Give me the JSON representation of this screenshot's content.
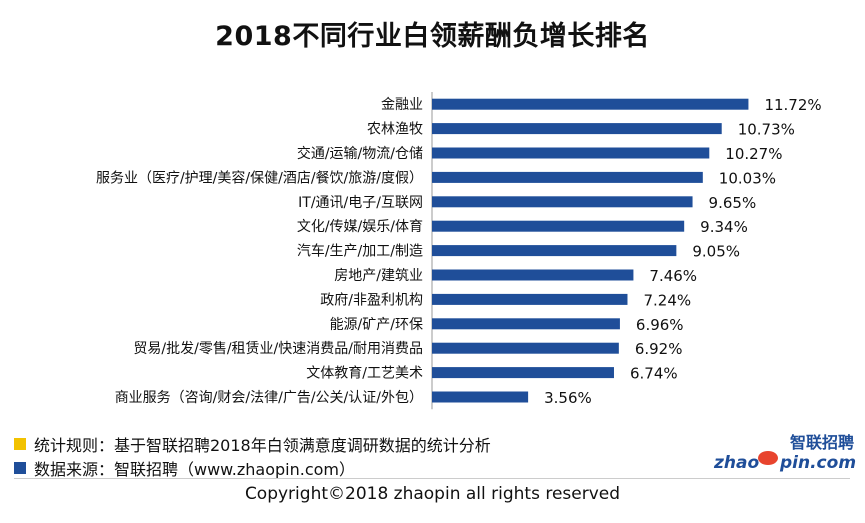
{
  "chart_data": {
    "type": "bar",
    "orientation": "horizontal",
    "title": "2018不同行业白领薪酬负增长排名",
    "categories": [
      "金融业",
      "农林渔牧",
      "交通/运输/物流/仓储",
      "服务业（医疗/护理/美容/保健/酒店/餐饮/旅游/度假）",
      "IT/通讯/电子/互联网",
      "文化/传媒/娱乐/体育",
      "汽车/生产/加工/制造",
      "房地产/建筑业",
      "政府/非盈利机构",
      "能源/矿产/环保",
      "贸易/批发/零售/租赁业/快速消费品/耐用消费品",
      "文体教育/工艺美术",
      "商业服务（咨询/财会/法律/广告/公关/认证/外包）"
    ],
    "values": [
      11.72,
      10.73,
      10.27,
      10.03,
      9.65,
      9.34,
      9.05,
      7.46,
      7.24,
      6.96,
      6.92,
      6.74,
      3.56
    ],
    "value_labels": [
      "11.72%",
      "10.73%",
      "10.27%",
      "10.03%",
      "9.65%",
      "9.34%",
      "9.05%",
      "7.46%",
      "7.24%",
      "6.96%",
      "6.92%",
      "6.74%",
      "3.56%"
    ],
    "unit": "%",
    "xlim": [
      0,
      13
    ],
    "bar_color": "#1f4e99",
    "grid": false,
    "axis": "left vertical line only"
  },
  "notes": [
    {
      "text": "统计规则：基于智联招聘2018年白领满意度调研数据的统计分析",
      "color": "#f2c200"
    },
    {
      "text": "数据来源：智联招聘（www.zhaopin.com）",
      "color": "#1f4e99"
    }
  ],
  "logo": {
    "cn": "智联招聘",
    "en_left": "zhao",
    "en_right": "pin.com"
  },
  "copyright": "Copyright©2018 zhaopin all rights reserved"
}
